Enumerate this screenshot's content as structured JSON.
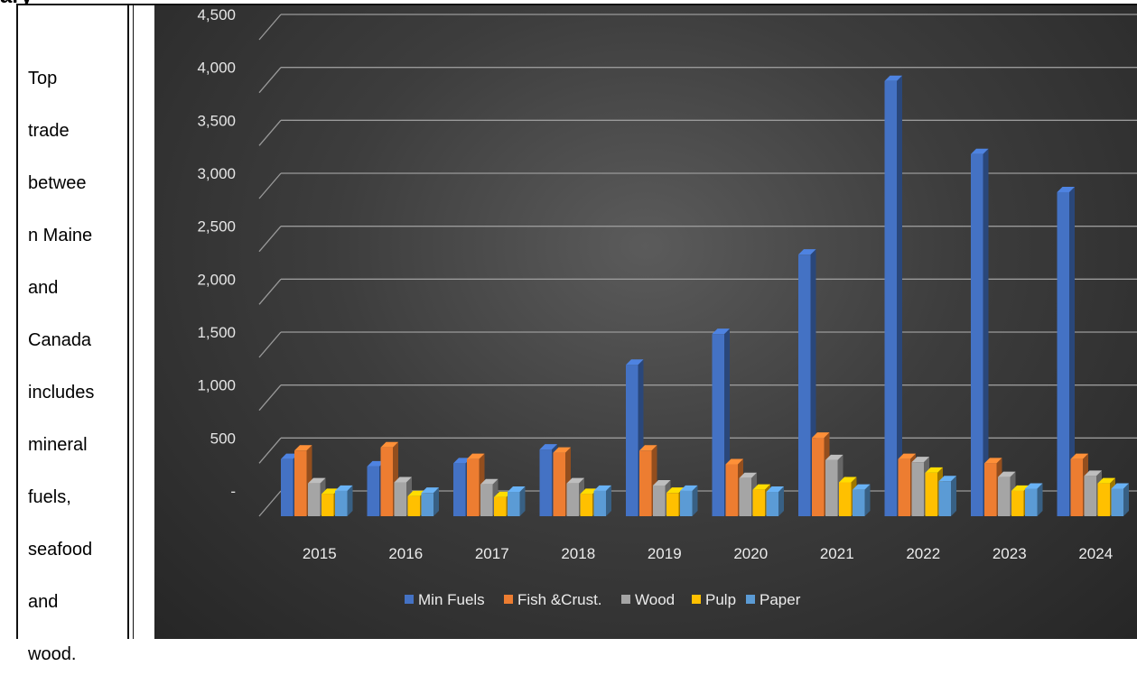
{
  "header_fragment": "ary",
  "side_note": "Top trade between Maine and Canada includes mineral fuels, seafood and wood.",
  "side_note_lines": [
    "Top",
    "trade",
    "betwee",
    "n Maine",
    "and",
    "Canada",
    "includes",
    "mineral",
    "fuels,",
    "seafood",
    "and",
    "wood."
  ],
  "chart_data": {
    "type": "bar",
    "three_d": true,
    "categories": [
      "2015",
      "2016",
      "2017",
      "2018",
      "2019",
      "2020",
      "2021",
      "2022",
      "2023",
      "2024"
    ],
    "ylim": [
      0,
      4500
    ],
    "yticks": [
      0,
      500,
      1000,
      1500,
      2000,
      2500,
      3000,
      3500,
      4000,
      4500
    ],
    "ytick_labels": [
      "-",
      "500",
      "1,000",
      "1,500",
      "2,000",
      "2,500",
      "3,000",
      "3,500",
      "4,000",
      "4,500"
    ],
    "grid": true,
    "legend_position": "bottom",
    "title": "",
    "xlabel": "",
    "ylabel": "",
    "series": [
      {
        "name": "Min Fuels",
        "color": "#4472c4",
        "values": [
          540,
          470,
          500,
          630,
          1430,
          1720,
          2470,
          4110,
          3420,
          3060
        ]
      },
      {
        "name": "Fish &Crust.",
        "color": "#ed7d31",
        "values": [
          620,
          650,
          540,
          600,
          620,
          490,
          740,
          540,
          500,
          540
        ]
      },
      {
        "name": "Wood",
        "color": "#a5a5a5",
        "values": [
          310,
          320,
          300,
          310,
          290,
          360,
          530,
          510,
          370,
          380
        ]
      },
      {
        "name": "Pulp",
        "color": "#ffc000",
        "values": [
          210,
          190,
          180,
          210,
          220,
          250,
          320,
          410,
          240,
          310
        ]
      },
      {
        "name": "Paper",
        "color": "#5b9bd5",
        "values": [
          240,
          220,
          230,
          240,
          240,
          230,
          250,
          330,
          260,
          260
        ]
      }
    ]
  }
}
